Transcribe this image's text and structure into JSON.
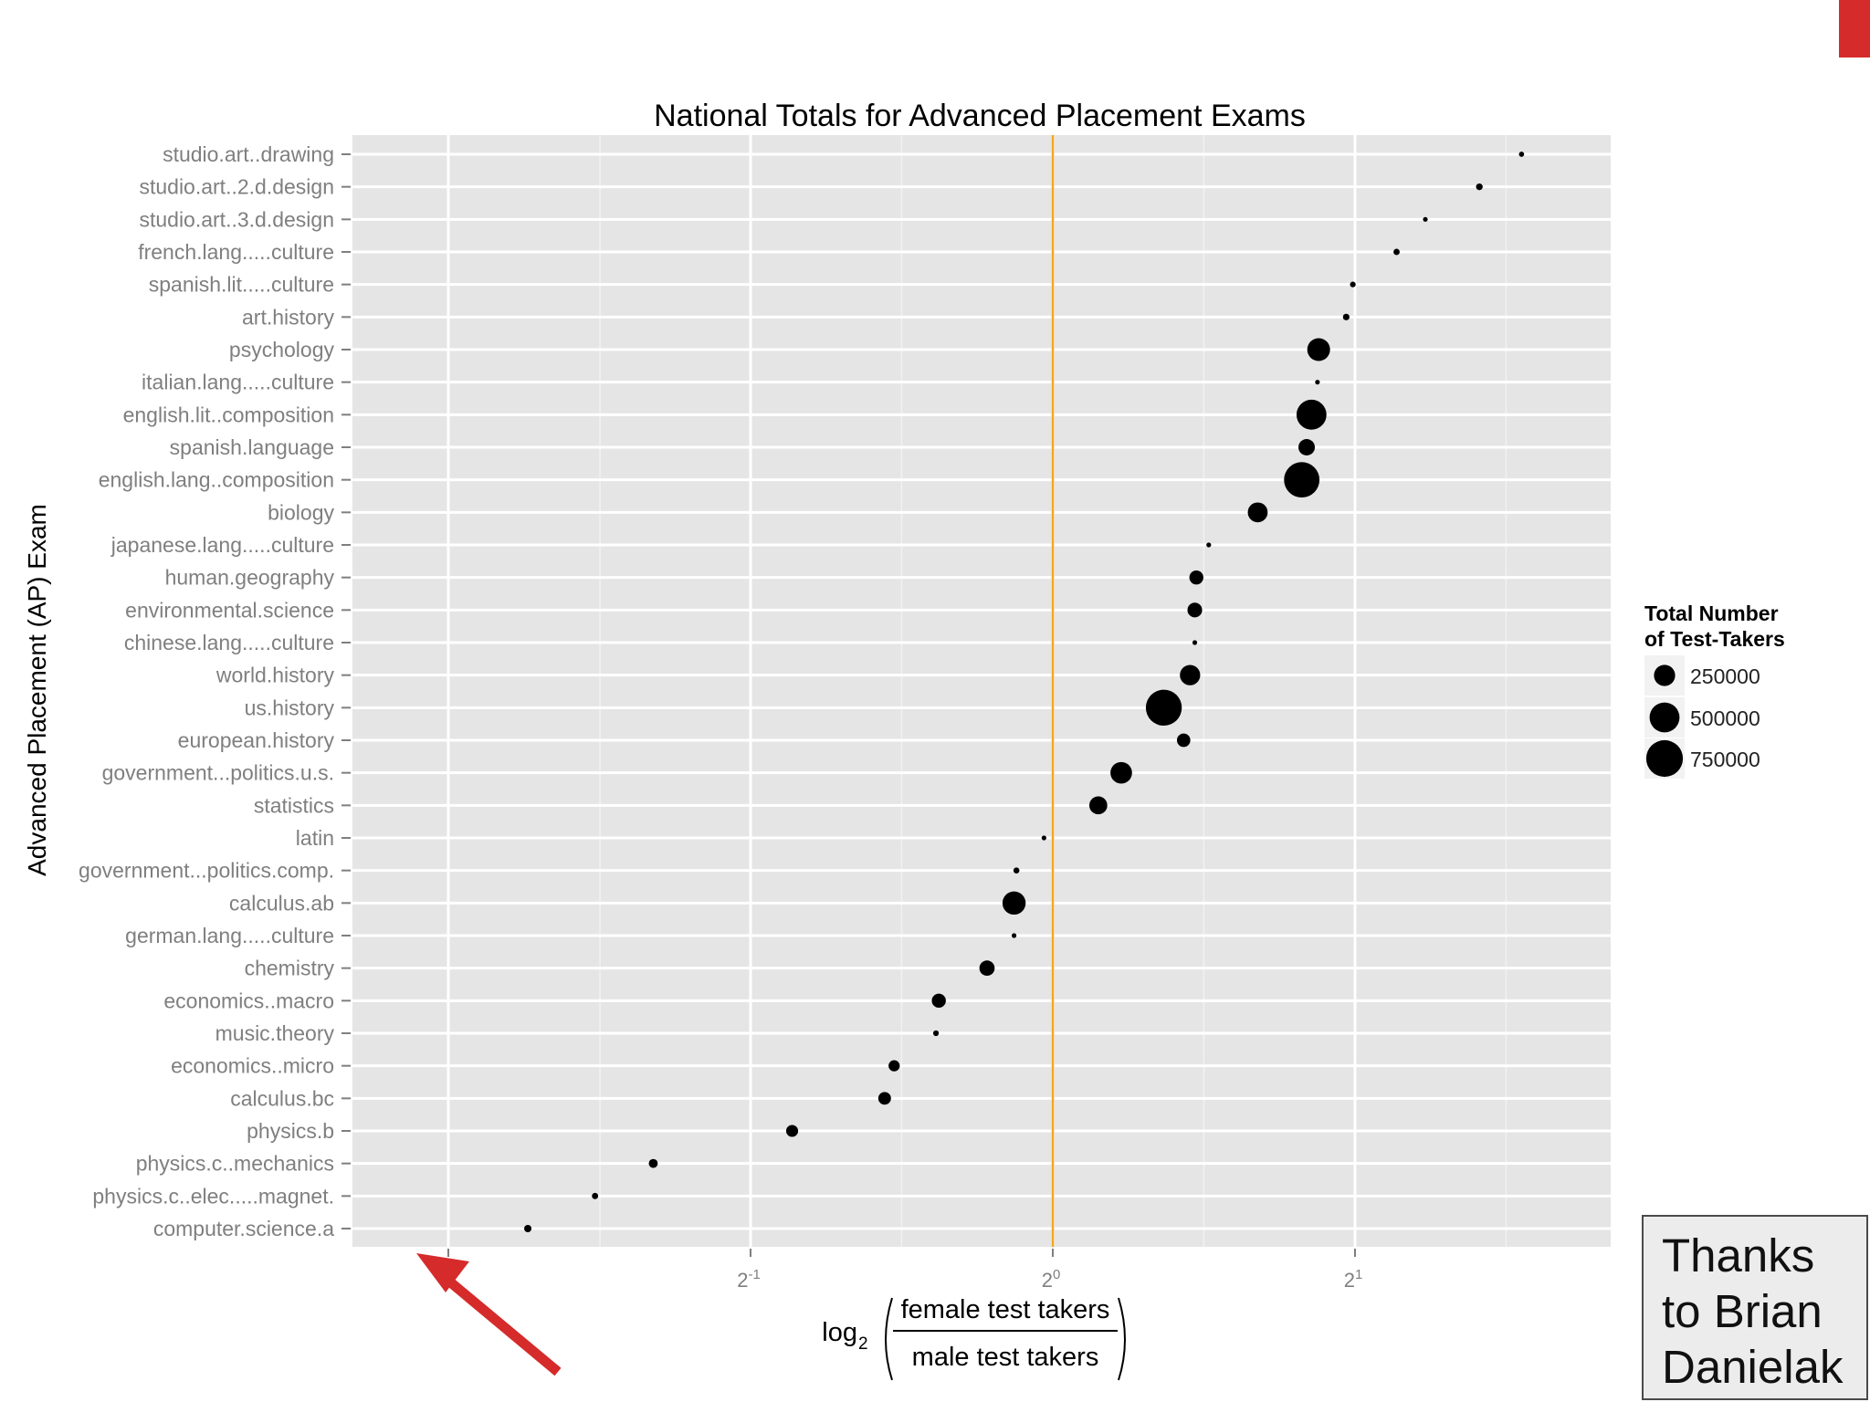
{
  "slide": {
    "accent_color": "#d52b2b",
    "thanks_text": "Thanks\nto Brian\nDanielak",
    "arrow_color": "#d52b2b"
  },
  "chart_data": {
    "type": "scatter",
    "title": "National Totals for Advanced Placement Exams",
    "ylabel": "Advanced Placement (AP) Exam",
    "xlabel": {
      "prefix": "log",
      "subscript": "2",
      "numerator": "female test takers",
      "denominator": "male test takers"
    },
    "x_scale": "log2",
    "x_ticks": [
      {
        "value": 0.5,
        "base": "2",
        "exp": "-1"
      },
      {
        "value": 1,
        "base": "2",
        "exp": "0"
      },
      {
        "value": 2,
        "base": "2",
        "exp": "1"
      }
    ],
    "xlim": [
      0.27,
      3.2
    ],
    "reference_line": {
      "x": 1,
      "color": "#f5a623"
    },
    "grid": true,
    "panel_color": "#e5e5e5",
    "legend": {
      "title": "Total Number\nof Test-Takers",
      "position": "right",
      "entries": [
        {
          "label": "250000",
          "size": 250000
        },
        {
          "label": "500000",
          "size": 500000
        },
        {
          "label": "750000",
          "size": 750000
        }
      ]
    },
    "points": [
      {
        "exam": "studio.art..drawing",
        "ratio": 2.93,
        "total": 15000
      },
      {
        "exam": "studio.art..2.d.design",
        "ratio": 2.66,
        "total": 25000
      },
      {
        "exam": "studio.art..3.d.design",
        "ratio": 2.35,
        "total": 5000
      },
      {
        "exam": "french.lang.....culture",
        "ratio": 2.2,
        "total": 22000
      },
      {
        "exam": "spanish.lit.....culture",
        "ratio": 1.99,
        "total": 18000
      },
      {
        "exam": "art.history",
        "ratio": 1.96,
        "total": 24000
      },
      {
        "exam": "psychology",
        "ratio": 1.84,
        "total": 290000
      },
      {
        "exam": "italian.lang.....culture",
        "ratio": 1.835,
        "total": 3000
      },
      {
        "exam": "english.lit..composition",
        "ratio": 1.81,
        "total": 500000
      },
      {
        "exam": "spanish.language",
        "ratio": 1.79,
        "total": 150000
      },
      {
        "exam": "english.lang..composition",
        "ratio": 1.77,
        "total": 700000
      },
      {
        "exam": "biology",
        "ratio": 1.6,
        "total": 220000
      },
      {
        "exam": "japanese.lang.....culture",
        "ratio": 1.43,
        "total": 2500
      },
      {
        "exam": "human.geography",
        "ratio": 1.39,
        "total": 110000
      },
      {
        "exam": "environmental.science",
        "ratio": 1.385,
        "total": 120000
      },
      {
        "exam": "chinese.lang.....culture",
        "ratio": 1.385,
        "total": 10000
      },
      {
        "exam": "world.history",
        "ratio": 1.37,
        "total": 230000
      },
      {
        "exam": "us.history",
        "ratio": 1.29,
        "total": 720000
      },
      {
        "exam": "european.history",
        "ratio": 1.35,
        "total": 100000
      },
      {
        "exam": "government...politics.u.s.",
        "ratio": 1.17,
        "total": 260000
      },
      {
        "exam": "statistics",
        "ratio": 1.11,
        "total": 180000
      },
      {
        "exam": "latin",
        "ratio": 0.98,
        "total": 8000
      },
      {
        "exam": "government...politics.comp.",
        "ratio": 0.92,
        "total": 20000
      },
      {
        "exam": "calculus.ab",
        "ratio": 0.915,
        "total": 300000
      },
      {
        "exam": "german.lang.....culture",
        "ratio": 0.915,
        "total": 5000
      },
      {
        "exam": "chemistry",
        "ratio": 0.86,
        "total": 130000
      },
      {
        "exam": "economics..macro",
        "ratio": 0.77,
        "total": 110000
      },
      {
        "exam": "music.theory",
        "ratio": 0.765,
        "total": 18000
      },
      {
        "exam": "economics..micro",
        "ratio": 0.695,
        "total": 70000
      },
      {
        "exam": "calculus.bc",
        "ratio": 0.68,
        "total": 90000
      },
      {
        "exam": "physics.b",
        "ratio": 0.55,
        "total": 80000
      },
      {
        "exam": "physics.c..mechanics",
        "ratio": 0.4,
        "total": 45000
      },
      {
        "exam": "physics.c..elec.....magnet.",
        "ratio": 0.35,
        "total": 22000
      },
      {
        "exam": "computer.science.a",
        "ratio": 0.3,
        "total": 30000
      }
    ]
  }
}
